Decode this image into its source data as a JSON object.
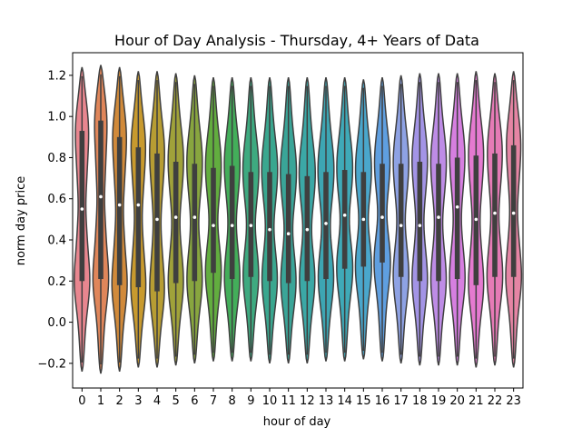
{
  "chart_data": {
    "type": "violin",
    "title": "Hour of Day Analysis - Thursday, 4+ Years of Data",
    "xlabel": "hour of day",
    "ylabel": "norm day price",
    "categories": [
      "0",
      "1",
      "2",
      "3",
      "4",
      "5",
      "6",
      "7",
      "8",
      "9",
      "10",
      "11",
      "12",
      "13",
      "14",
      "15",
      "16",
      "17",
      "18",
      "19",
      "20",
      "21",
      "22",
      "23"
    ],
    "ylim": [
      -0.32,
      1.31
    ],
    "yticks": [
      -0.2,
      0.0,
      0.2,
      0.4,
      0.6,
      0.8,
      1.0,
      1.2
    ],
    "ytick_labels": [
      "−0.2",
      "0.0",
      "0.2",
      "0.4",
      "0.6",
      "0.8",
      "1.0",
      "1.2"
    ],
    "grid": false,
    "colors": [
      "#e8868f",
      "#e0865a",
      "#d18a3a",
      "#c89a2e",
      "#b79d33",
      "#a0a23a",
      "#88a63f",
      "#62ad3f",
      "#43ae5a",
      "#3eaa80",
      "#3aa78f",
      "#3aa598",
      "#3ba8a6",
      "#3da6b3",
      "#3faab8",
      "#4aa7cc",
      "#5f9fe0",
      "#8ea2e4",
      "#a394e6",
      "#be8ce6",
      "#d67fe0",
      "#e57ad0",
      "#e67bb6",
      "#e585a4"
    ],
    "violins": [
      {
        "min": -0.24,
        "max": 1.24,
        "q1": 0.2,
        "q3": 0.93,
        "median": 0.55
      },
      {
        "min": -0.25,
        "max": 1.25,
        "q1": 0.21,
        "q3": 0.98,
        "median": 0.61
      },
      {
        "min": -0.24,
        "max": 1.24,
        "q1": 0.18,
        "q3": 0.9,
        "median": 0.57
      },
      {
        "min": -0.22,
        "max": 1.22,
        "q1": 0.17,
        "q3": 0.85,
        "median": 0.57
      },
      {
        "min": -0.22,
        "max": 1.22,
        "q1": 0.15,
        "q3": 0.82,
        "median": 0.5
      },
      {
        "min": -0.21,
        "max": 1.21,
        "q1": 0.19,
        "q3": 0.78,
        "median": 0.51
      },
      {
        "min": -0.2,
        "max": 1.2,
        "q1": 0.2,
        "q3": 0.77,
        "median": 0.51
      },
      {
        "min": -0.19,
        "max": 1.19,
        "q1": 0.24,
        "q3": 0.75,
        "median": 0.47
      },
      {
        "min": -0.19,
        "max": 1.19,
        "q1": 0.21,
        "q3": 0.76,
        "median": 0.47
      },
      {
        "min": -0.19,
        "max": 1.19,
        "q1": 0.22,
        "q3": 0.73,
        "median": 0.47
      },
      {
        "min": -0.2,
        "max": 1.19,
        "q1": 0.2,
        "q3": 0.73,
        "median": 0.45
      },
      {
        "min": -0.2,
        "max": 1.19,
        "q1": 0.19,
        "q3": 0.72,
        "median": 0.43
      },
      {
        "min": -0.2,
        "max": 1.19,
        "q1": 0.2,
        "q3": 0.71,
        "median": 0.45
      },
      {
        "min": -0.19,
        "max": 1.19,
        "q1": 0.21,
        "q3": 0.73,
        "median": 0.48
      },
      {
        "min": -0.19,
        "max": 1.19,
        "q1": 0.26,
        "q3": 0.74,
        "median": 0.52
      },
      {
        "min": -0.18,
        "max": 1.18,
        "q1": 0.27,
        "q3": 0.73,
        "median": 0.5
      },
      {
        "min": -0.19,
        "max": 1.19,
        "q1": 0.29,
        "q3": 0.77,
        "median": 0.51
      },
      {
        "min": -0.2,
        "max": 1.2,
        "q1": 0.22,
        "q3": 0.77,
        "median": 0.47
      },
      {
        "min": -0.21,
        "max": 1.21,
        "q1": 0.2,
        "q3": 0.78,
        "median": 0.47
      },
      {
        "min": -0.21,
        "max": 1.21,
        "q1": 0.2,
        "q3": 0.77,
        "median": 0.51
      },
      {
        "min": -0.21,
        "max": 1.21,
        "q1": 0.21,
        "q3": 0.8,
        "median": 0.56
      },
      {
        "min": -0.22,
        "max": 1.22,
        "q1": 0.18,
        "q3": 0.81,
        "median": 0.5
      },
      {
        "min": -0.21,
        "max": 1.21,
        "q1": 0.22,
        "q3": 0.82,
        "median": 0.53
      },
      {
        "min": -0.22,
        "max": 1.22,
        "q1": 0.22,
        "q3": 0.86,
        "median": 0.53
      }
    ]
  }
}
